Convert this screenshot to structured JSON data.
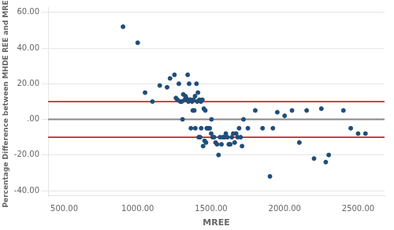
{
  "chart_data": {
    "type": "scatter",
    "xlabel": "MREE",
    "ylabel": "Percentage Difference between MHDE REE and MREE",
    "x": [
      900,
      1000,
      1050,
      1100,
      1150,
      1200,
      1220,
      1250,
      1260,
      1270,
      1280,
      1290,
      1300,
      1305,
      1310,
      1320,
      1325,
      1330,
      1335,
      1340,
      1345,
      1350,
      1355,
      1360,
      1362,
      1370,
      1375,
      1380,
      1385,
      1390,
      1392,
      1400,
      1405,
      1410,
      1415,
      1420,
      1425,
      1430,
      1432,
      1440,
      1445,
      1450,
      1455,
      1460,
      1465,
      1470,
      1480,
      1490,
      1500,
      1502,
      1510,
      1520,
      1530,
      1540,
      1550,
      1560,
      1570,
      1580,
      1590,
      1600,
      1610,
      1620,
      1630,
      1640,
      1650,
      1660,
      1670,
      1680,
      1690,
      1700,
      1710,
      1720,
      1750,
      1800,
      1850,
      1900,
      1920,
      1950,
      2000,
      2050,
      2100,
      2150,
      2200,
      2250,
      2280,
      2300,
      2400,
      2450,
      2500,
      2550
    ],
    "values": [
      52,
      43,
      15,
      10,
      19,
      18,
      23,
      25,
      12,
      11,
      20,
      10,
      10,
      0,
      14,
      11,
      13,
      12,
      11,
      25,
      10,
      20,
      11,
      11,
      -5,
      10,
      5,
      11,
      5,
      13,
      -5,
      20,
      10,
      15,
      -10,
      11,
      -10,
      10,
      -5,
      11,
      -15,
      6,
      -12,
      5,
      -13,
      -5,
      -5,
      -5,
      -8,
      0,
      -10,
      -10,
      -13,
      -14,
      -20,
      -10,
      -14,
      -10,
      -10,
      -8,
      -10,
      -14,
      -14,
      -10,
      -8,
      -13,
      -8,
      -10,
      -5,
      -10,
      -15,
      0,
      -5,
      5,
      -5,
      -32,
      -5,
      4,
      2,
      5,
      -13,
      5,
      -22,
      6,
      -24,
      -20,
      5,
      -5,
      -8,
      -8
    ],
    "color": "#1F4E79",
    "reference_lines": [
      {
        "value": 0,
        "color": "#888888"
      },
      {
        "value": 10,
        "color": "#CC0000"
      },
      {
        "value": -10,
        "color": "#CC0000"
      }
    ],
    "xlim": [
      390,
      2680
    ],
    "ylim": [
      -43,
      63
    ],
    "xticks": [
      {
        "value": 500,
        "label": "500.00"
      },
      {
        "value": 1000,
        "label": "1000.00"
      },
      {
        "value": 1500,
        "label": "1500.00"
      },
      {
        "value": 2000,
        "label": "2000.00"
      },
      {
        "value": 2500,
        "label": "2500.00"
      }
    ],
    "yticks": [
      {
        "value": -40,
        "label": "-40.00"
      },
      {
        "value": -20,
        "label": "-20.00"
      },
      {
        "value": 0,
        "label": ".00"
      },
      {
        "value": 20,
        "label": "20.00"
      },
      {
        "value": 40,
        "label": "40.00"
      },
      {
        "value": 60,
        "label": "60.00"
      }
    ],
    "grid": "y"
  }
}
